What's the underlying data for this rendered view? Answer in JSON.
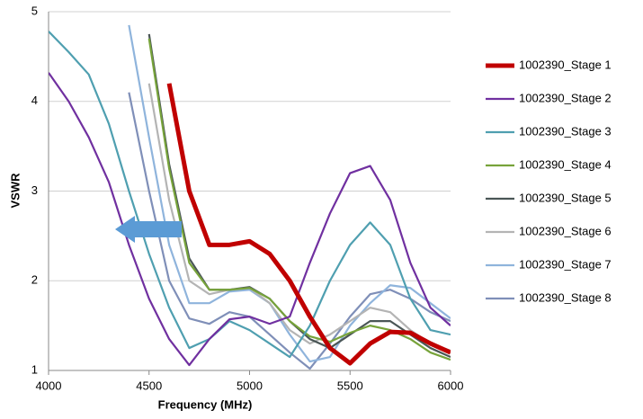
{
  "chart_data": {
    "type": "line",
    "x_label": "Frequency (MHz)",
    "y_label": "VSWR",
    "x": [
      4000,
      4100,
      4200,
      4300,
      4400,
      4500,
      4600,
      4700,
      4800,
      4900,
      5000,
      5100,
      5200,
      5300,
      5400,
      5500,
      5600,
      5700,
      5800,
      5900,
      6000
    ],
    "xlim": [
      4000,
      6000
    ],
    "xticks": [
      4000,
      4500,
      5000,
      5500,
      6000
    ],
    "ylim": [
      1,
      5
    ],
    "yticks": [
      1,
      2,
      3,
      4,
      5
    ],
    "grid": true,
    "series": [
      {
        "name": "1002390_Stage 1",
        "color": "#c00000",
        "values": [
          null,
          null,
          null,
          null,
          null,
          null,
          4.2,
          3.0,
          2.4,
          2.4,
          2.44,
          2.3,
          2.0,
          1.6,
          1.25,
          1.08,
          1.3,
          1.43,
          1.42,
          1.3,
          1.2
        ]
      },
      {
        "name": "1002390_Stage 2",
        "color": "#7030a0",
        "values": [
          4.32,
          4.0,
          3.6,
          3.1,
          2.4,
          1.8,
          1.35,
          1.06,
          1.35,
          1.57,
          1.6,
          1.52,
          1.6,
          2.2,
          2.75,
          3.2,
          3.28,
          2.9,
          2.2,
          1.7,
          1.5
        ]
      },
      {
        "name": "1002390_Stage 3",
        "color": "#4f9fb0",
        "values": [
          4.78,
          4.55,
          4.3,
          3.75,
          3.0,
          2.3,
          1.7,
          1.25,
          1.35,
          1.55,
          1.45,
          1.3,
          1.15,
          1.5,
          2.0,
          2.4,
          2.65,
          2.4,
          1.8,
          1.45,
          1.4
        ]
      },
      {
        "name": "1002390_Stage 4",
        "color": "#77a33a",
        "values": [
          null,
          null,
          null,
          null,
          null,
          4.7,
          3.25,
          2.2,
          1.9,
          1.9,
          1.92,
          1.8,
          1.55,
          1.38,
          1.32,
          1.42,
          1.5,
          1.45,
          1.35,
          1.2,
          1.12
        ]
      },
      {
        "name": "1002390_Stage 5",
        "color": "#4a5656",
        "values": [
          null,
          null,
          null,
          null,
          null,
          4.75,
          3.3,
          2.25,
          1.9,
          1.9,
          1.93,
          1.8,
          1.55,
          1.35,
          1.25,
          1.4,
          1.55,
          1.55,
          1.4,
          1.25,
          1.15
        ]
      },
      {
        "name": "1002390_Stage 6",
        "color": "#b4b4b4",
        "values": [
          null,
          null,
          null,
          null,
          null,
          4.2,
          2.9,
          2.0,
          1.85,
          1.9,
          1.92,
          1.75,
          1.45,
          1.3,
          1.4,
          1.55,
          1.7,
          1.65,
          1.45,
          1.3,
          1.22
        ]
      },
      {
        "name": "1002390_Stage 7",
        "color": "#8fb4dc",
        "values": [
          null,
          null,
          null,
          null,
          4.85,
          3.6,
          2.4,
          1.75,
          1.75,
          1.88,
          1.9,
          1.75,
          1.4,
          1.1,
          1.15,
          1.5,
          1.75,
          1.95,
          1.92,
          1.75,
          1.58
        ]
      },
      {
        "name": "1002390_Stage 8",
        "color": "#7f8fb8",
        "values": [
          null,
          null,
          null,
          null,
          4.1,
          3.0,
          2.0,
          1.58,
          1.52,
          1.65,
          1.6,
          1.4,
          1.2,
          1.02,
          1.3,
          1.6,
          1.85,
          1.9,
          1.8,
          1.65,
          1.55
        ]
      }
    ]
  }
}
